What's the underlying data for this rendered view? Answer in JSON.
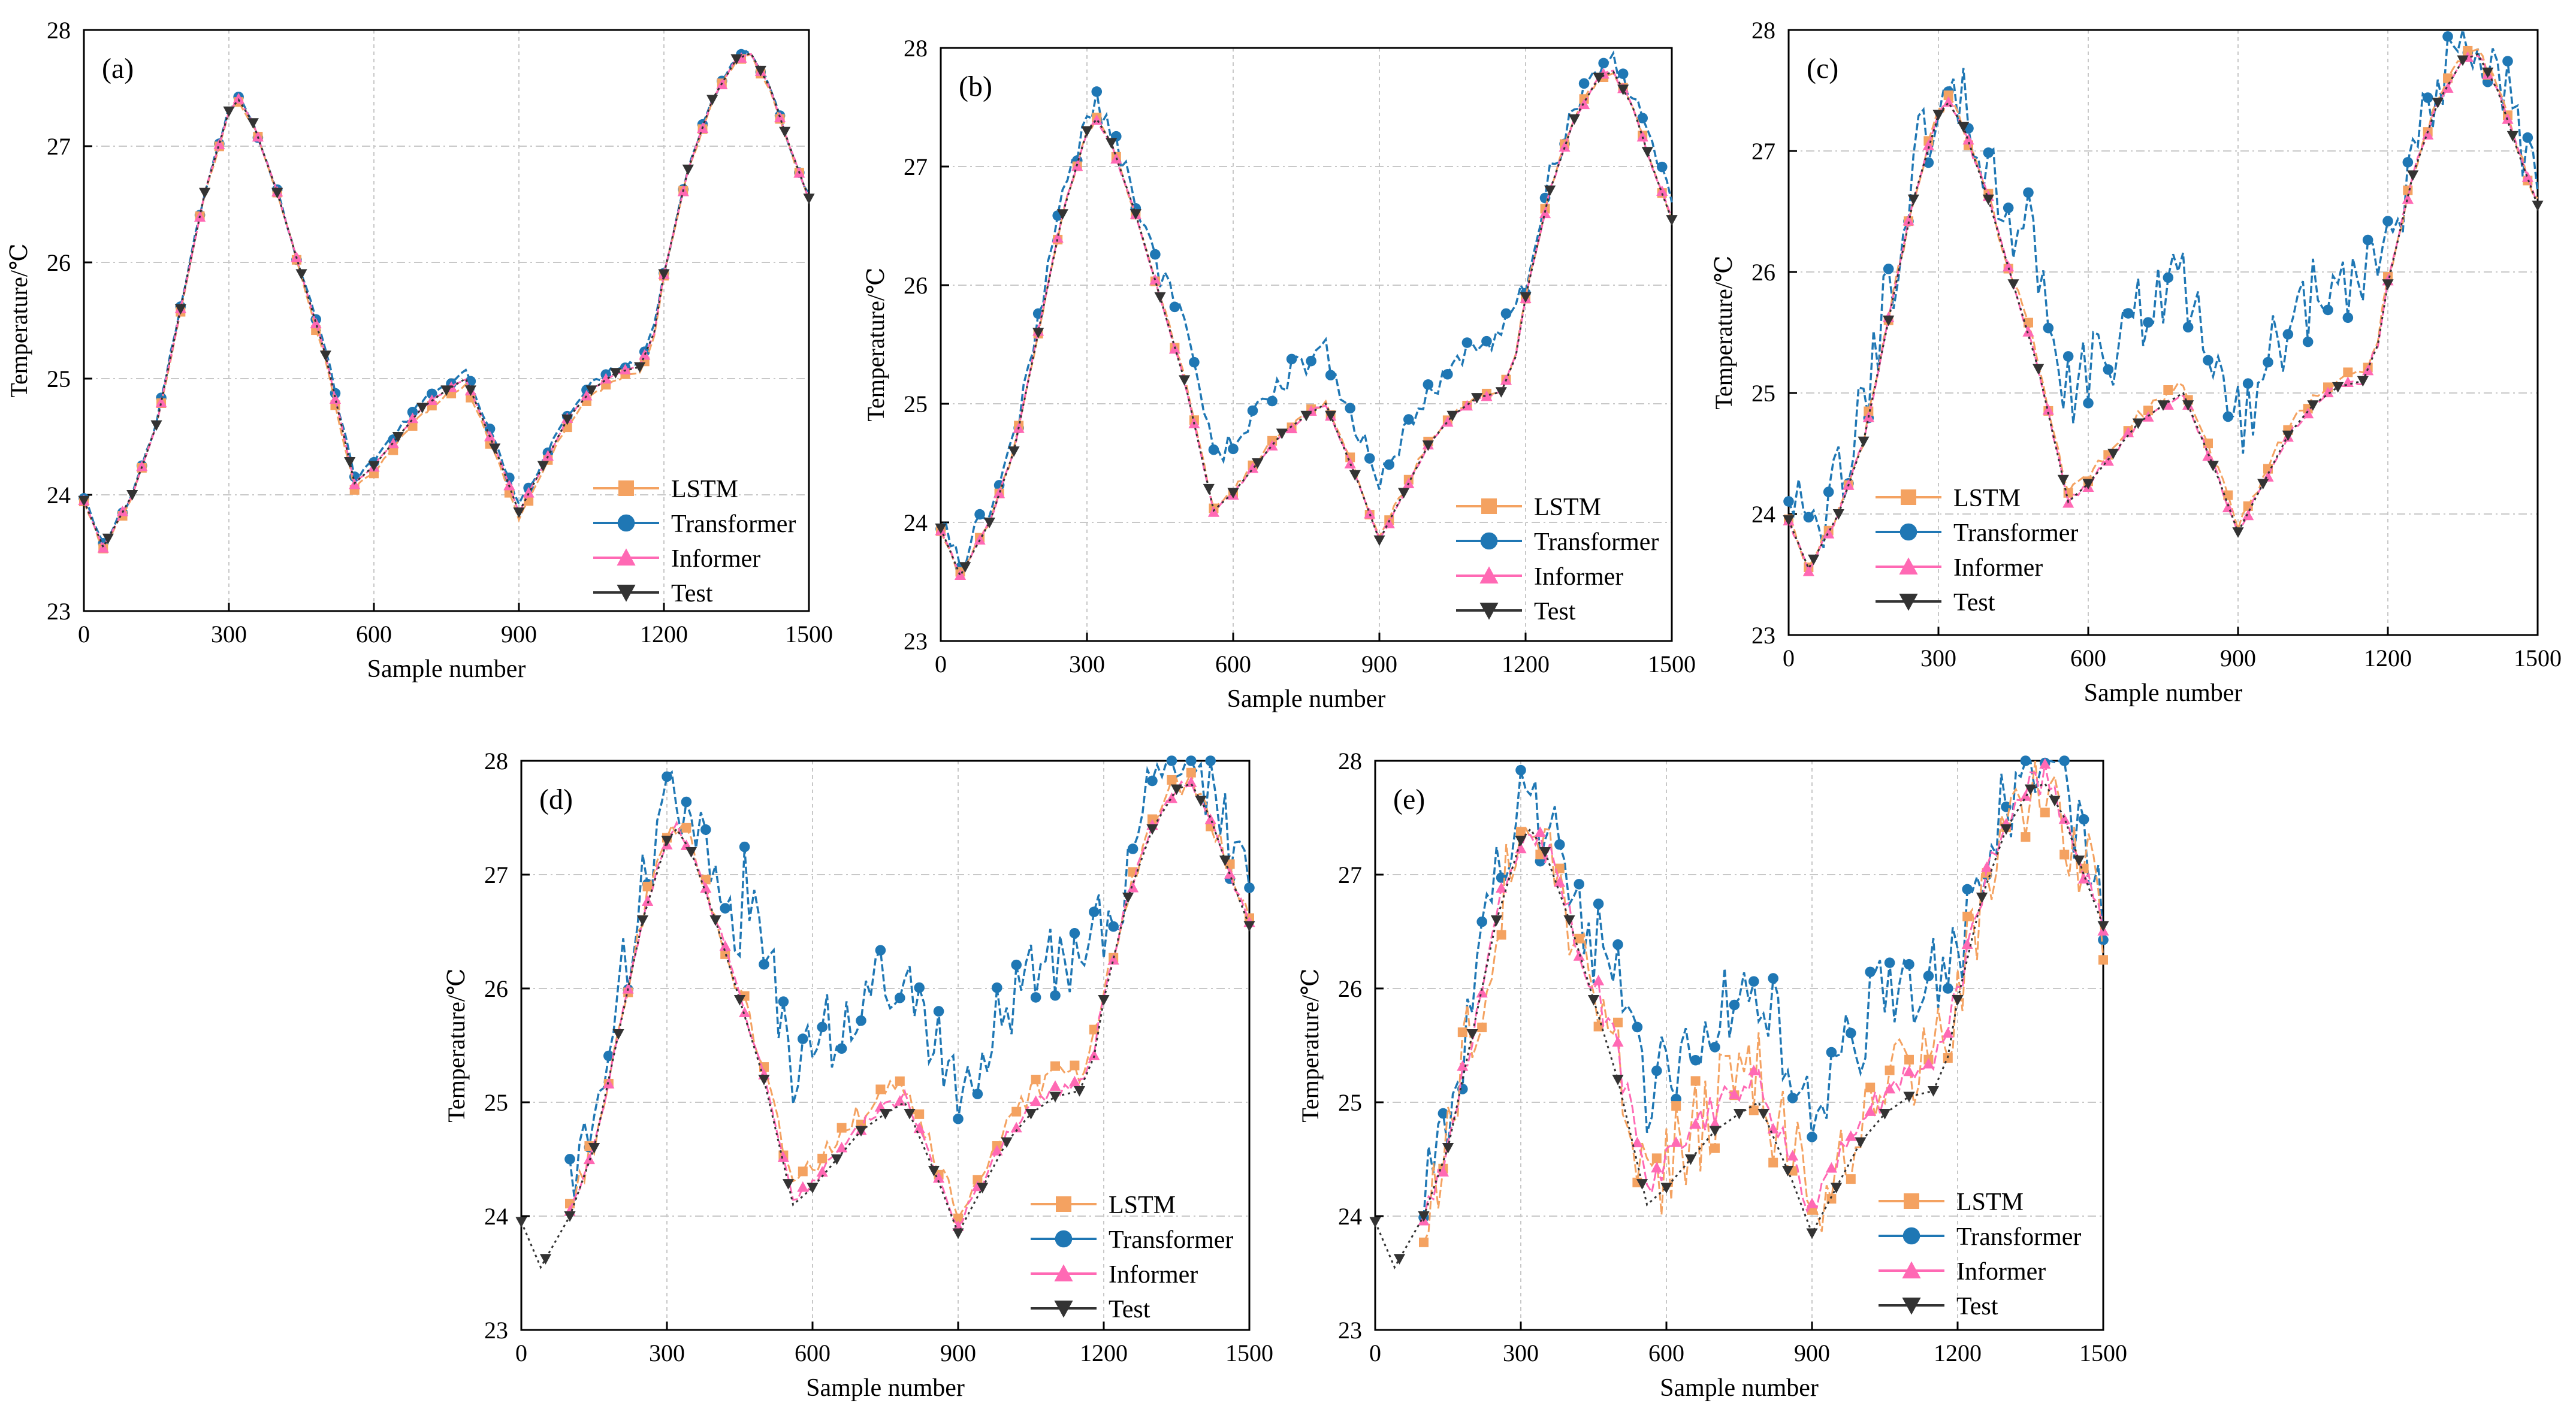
{
  "figure": {
    "description_units": {
      "x": "Sample number",
      "y": "Temperature/℃"
    },
    "colors": {
      "LSTM": "#f4a261",
      "Transformer": "#1f77b4",
      "Informer": "#ff69b4",
      "Test": "#333333",
      "grid": "#c8c8c8"
    }
  },
  "chart_data": [
    {
      "type": "line",
      "panel_label": "(a)",
      "xlabel": "Sample number",
      "ylabel": "Temperature/℃",
      "xlim": [
        0,
        1500
      ],
      "ylim": [
        23,
        28
      ],
      "xticks": [
        "0",
        "300",
        "600",
        "900",
        "1200",
        "1500"
      ],
      "yticks": [
        "23",
        "24",
        "25",
        "26",
        "27",
        "28"
      ],
      "legend": [
        "LSTM",
        "Transformer",
        "Informer",
        "Test"
      ],
      "legend_position": "bottom-right",
      "noise": {
        "LSTM": 0.02,
        "Transformer": 0.03,
        "Informer": 0.01
      },
      "offset": {
        "LSTM": -0.05,
        "Transformer": 0.05,
        "Informer": 0.0
      }
    },
    {
      "type": "line",
      "panel_label": "(b)",
      "xlabel": "Sample number",
      "ylabel": "Temperature/℃",
      "xlim": [
        0,
        1500
      ],
      "ylim": [
        23,
        28
      ],
      "xticks": [
        "0",
        "300",
        "600",
        "900",
        "1200",
        "1500"
      ],
      "yticks": [
        "23",
        "24",
        "25",
        "26",
        "27",
        "28"
      ],
      "legend": [
        "LSTM",
        "Transformer",
        "Informer",
        "Test"
      ],
      "legend_position": "bottom-right",
      "noise": {
        "LSTM": 0.03,
        "Transformer": 0.12,
        "Informer": 0.02
      },
      "offset": {
        "LSTM": 0.02,
        "Transformer": 0.45,
        "Informer": 0.0
      }
    },
    {
      "type": "line",
      "panel_label": "(c)",
      "xlabel": "Sample number",
      "ylabel": "Temperature/℃",
      "xlim": [
        0,
        1500
      ],
      "ylim": [
        23,
        28
      ],
      "xticks": [
        "0",
        "300",
        "600",
        "900",
        "1200",
        "1500"
      ],
      "yticks": [
        "23",
        "24",
        "25",
        "26",
        "27",
        "28"
      ],
      "legend": [
        "LSTM",
        "Transformer",
        "Informer",
        "Test"
      ],
      "legend_position": "bottom-center",
      "noise": {
        "LSTM": 0.05,
        "Transformer": 0.35,
        "Informer": 0.03
      },
      "offset": {
        "LSTM": 0.06,
        "Transformer": 0.9,
        "Informer": 0.0
      }
    },
    {
      "type": "line",
      "panel_label": "(d)",
      "xlabel": "Sample number",
      "ylabel": "Temperature/℃",
      "xlim": [
        0,
        1500
      ],
      "ylim": [
        23,
        28
      ],
      "xticks": [
        "0",
        "300",
        "600",
        "900",
        "1200",
        "1500"
      ],
      "yticks": [
        "23",
        "24",
        "25",
        "26",
        "27",
        "28"
      ],
      "legend": [
        "LSTM",
        "Transformer",
        "Informer",
        "Test"
      ],
      "legend_position": "bottom-right",
      "noise": {
        "LSTM": 0.12,
        "Transformer": 0.35,
        "Informer": 0.05
      },
      "offset": {
        "LSTM": 0.15,
        "Transformer": 1.2,
        "Informer": 0.05
      }
    },
    {
      "type": "line",
      "panel_label": "(e)",
      "xlabel": "Sample number",
      "ylabel": "Temperature/℃",
      "xlim": [
        0,
        1500
      ],
      "ylim": [
        23,
        28
      ],
      "xticks": [
        "0",
        "300",
        "600",
        "900",
        "1200",
        "1500"
      ],
      "yticks": [
        "23",
        "24",
        "25",
        "26",
        "27",
        "28"
      ],
      "legend": [
        "LSTM",
        "Transformer",
        "Informer",
        "Test"
      ],
      "legend_position": "bottom-center",
      "noise": {
        "LSTM": 0.45,
        "Transformer": 0.4,
        "Informer": 0.15
      },
      "offset": {
        "LSTM": 0.2,
        "Transformer": 1.0,
        "Informer": 0.2
      }
    }
  ],
  "test_series": {
    "x": [
      0,
      40,
      100,
      150,
      200,
      250,
      300,
      320,
      350,
      400,
      450,
      500,
      560,
      600,
      650,
      700,
      750,
      790,
      820,
      860,
      900,
      950,
      1000,
      1050,
      1100,
      1150,
      1180,
      1200,
      1250,
      1300,
      1350,
      1380,
      1420,
      1460,
      1500
    ],
    "y": [
      23.95,
      23.55,
      24.0,
      24.6,
      25.6,
      26.6,
      27.3,
      27.4,
      27.2,
      26.6,
      25.9,
      25.2,
      24.1,
      24.25,
      24.5,
      24.75,
      24.9,
      25.0,
      24.7,
      24.3,
      23.85,
      24.25,
      24.65,
      24.9,
      25.05,
      25.1,
      25.4,
      25.9,
      26.8,
      27.4,
      27.75,
      27.8,
      27.5,
      27.0,
      26.55
    ]
  }
}
